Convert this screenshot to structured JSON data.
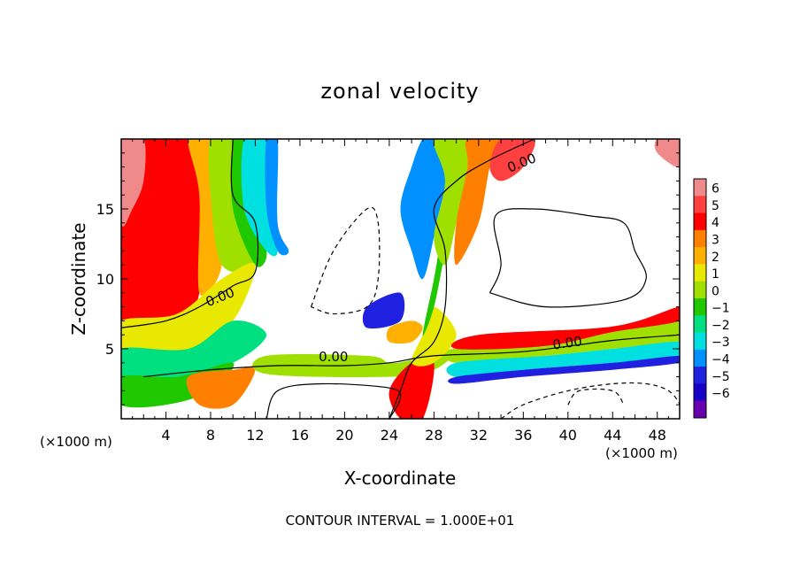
{
  "chart_data": {
    "type": "heatmap",
    "title": "zonal velocity",
    "xlabel": "X-coordinate",
    "ylabel": "Z-coordinate",
    "x_unit_left": "(×1000 m)",
    "x_unit_right": "(×1000 m)",
    "footer": "CONTOUR INTERVAL = 1.000E+01",
    "xlim": [
      0,
      50
    ],
    "ylim": [
      0,
      20
    ],
    "x_ticks": [
      4,
      8,
      12,
      16,
      20,
      24,
      28,
      32,
      36,
      40,
      44,
      48
    ],
    "y_ticks": [
      5,
      10,
      15
    ],
    "colorbar": {
      "labels": [
        "6",
        "5",
        "4",
        "3",
        "2",
        "1",
        "0",
        "−1",
        "−2",
        "−3",
        "−4",
        "−5",
        "−6"
      ],
      "colors": [
        "#f08a8a",
        "#ff4040",
        "#ff0000",
        "#ff8000",
        "#ffb000",
        "#e8e800",
        "#a0e000",
        "#20c800",
        "#00e080",
        "#00e0e0",
        "#0090ff",
        "#2020e0",
        "#1800c8",
        "#6800b0"
      ]
    },
    "contour_labels": [
      "0.00",
      "0.00",
      "0.00",
      "0.00"
    ],
    "contour_label_pos": [
      [
        9,
        8.4
      ],
      [
        19,
        4.1
      ],
      [
        40,
        5.1
      ],
      [
        36,
        18.0
      ]
    ],
    "contour_label_rot": [
      -22,
      0,
      -8,
      -22
    ],
    "regions": [
      {
        "value": 4.0,
        "points": [
          [
            0,
            20
          ],
          [
            6,
            20
          ],
          [
            7,
            16
          ],
          [
            7,
            9
          ],
          [
            5,
            7.5
          ],
          [
            0,
            7
          ]
        ]
      },
      {
        "value": 2.0,
        "points": [
          [
            6,
            20
          ],
          [
            8,
            20
          ],
          [
            8,
            16
          ],
          [
            9,
            11
          ],
          [
            7,
            9
          ],
          [
            7,
            16
          ]
        ]
      },
      {
        "value": 0.0,
        "points": [
          [
            8,
            20
          ],
          [
            10,
            20
          ],
          [
            10,
            15
          ],
          [
            12,
            11
          ],
          [
            9,
            11
          ],
          [
            8,
            16
          ]
        ]
      },
      {
        "value": -1.0,
        "points": [
          [
            10,
            20
          ],
          [
            11,
            20
          ],
          [
            11,
            15
          ],
          [
            13,
            12
          ],
          [
            12,
            11
          ],
          [
            10,
            15
          ]
        ]
      },
      {
        "value": -3.0,
        "points": [
          [
            11,
            20
          ],
          [
            13,
            20
          ],
          [
            13,
            15
          ],
          [
            14,
            12
          ],
          [
            13,
            12
          ],
          [
            11,
            15
          ]
        ]
      },
      {
        "value": -4.5,
        "points": [
          [
            13,
            20
          ],
          [
            14,
            20
          ],
          [
            14,
            14
          ],
          [
            15,
            12
          ],
          [
            14,
            12
          ],
          [
            13,
            15
          ]
        ]
      },
      {
        "value": 5.5,
        "points": [
          [
            0,
            20
          ],
          [
            2,
            20
          ],
          [
            2,
            17
          ],
          [
            1,
            15
          ],
          [
            0,
            14
          ]
        ]
      },
      {
        "value": 0.5,
        "points": [
          [
            0,
            7
          ],
          [
            5,
            7.5
          ],
          [
            9,
            10
          ],
          [
            12,
            11
          ],
          [
            10,
            7
          ],
          [
            6,
            5
          ],
          [
            0,
            5
          ]
        ]
      },
      {
        "value": -2.5,
        "points": [
          [
            0,
            5
          ],
          [
            6,
            5
          ],
          [
            10,
            7
          ],
          [
            13,
            6
          ],
          [
            10,
            4
          ],
          [
            5,
            3
          ],
          [
            0,
            3
          ]
        ]
      },
      {
        "value": -1.0,
        "points": [
          [
            0,
            3
          ],
          [
            5,
            3
          ],
          [
            10,
            4
          ],
          [
            8,
            2
          ],
          [
            4,
            1
          ],
          [
            0,
            1
          ]
        ]
      },
      {
        "value": 3.0,
        "points": [
          [
            6,
            3
          ],
          [
            10,
            3.5
          ],
          [
            12,
            3.5
          ],
          [
            10,
            1
          ],
          [
            7,
            1
          ]
        ]
      },
      {
        "value": 0.0,
        "points": [
          [
            13,
            4.5
          ],
          [
            22,
            4.5
          ],
          [
            24,
            4
          ],
          [
            26,
            4.2
          ],
          [
            30,
            5
          ],
          [
            28,
            3.5
          ],
          [
            24,
            3
          ],
          [
            13,
            3.2
          ]
        ]
      },
      {
        "value": 4.0,
        "points": [
          [
            24,
            2
          ],
          [
            26,
            4
          ],
          [
            28,
            4
          ],
          [
            27,
            0
          ],
          [
            25,
            0
          ]
        ]
      },
      {
        "value": 1.0,
        "points": [
          [
            26,
            4
          ],
          [
            28,
            4
          ],
          [
            30,
            6
          ],
          [
            28,
            8
          ],
          [
            27,
            6
          ]
        ]
      },
      {
        "value": -1.5,
        "points": [
          [
            27,
            6
          ],
          [
            28,
            8
          ],
          [
            29,
            12
          ],
          [
            30,
            16
          ],
          [
            31,
            17
          ],
          [
            29,
            14
          ],
          [
            28,
            10
          ]
        ]
      },
      {
        "value": -4.0,
        "points": [
          [
            25,
            15
          ],
          [
            26,
            18
          ],
          [
            27,
            20
          ],
          [
            28,
            20
          ],
          [
            29,
            17
          ],
          [
            28,
            13
          ],
          [
            27,
            10
          ],
          [
            26,
            12
          ]
        ]
      },
      {
        "value": 0.0,
        "points": [
          [
            28,
            20
          ],
          [
            31,
            20
          ],
          [
            31,
            18
          ],
          [
            30,
            14
          ],
          [
            29,
            11
          ],
          [
            28,
            13
          ],
          [
            29,
            17
          ]
        ]
      },
      {
        "value": 3.0,
        "points": [
          [
            31,
            20
          ],
          [
            34,
            20
          ],
          [
            33,
            18
          ],
          [
            32,
            14
          ],
          [
            30,
            11
          ],
          [
            30,
            14
          ],
          [
            31,
            18
          ]
        ]
      },
      {
        "value": 5.0,
        "points": [
          [
            34,
            20
          ],
          [
            37,
            20
          ],
          [
            36,
            18
          ],
          [
            34,
            17
          ],
          [
            33,
            18
          ]
        ]
      },
      {
        "value": 0.0,
        "points": [
          [
            30,
            5
          ],
          [
            38,
            5.2
          ],
          [
            44,
            6.2
          ],
          [
            50,
            7
          ],
          [
            50,
            5.5
          ],
          [
            44,
            5
          ],
          [
            38,
            4.5
          ],
          [
            30,
            4
          ]
        ]
      },
      {
        "value": 3.5,
        "points": [
          [
            32,
            6
          ],
          [
            44,
            6.6
          ],
          [
            50,
            8
          ],
          [
            50,
            7
          ],
          [
            44,
            6.2
          ],
          [
            38,
            5.2
          ],
          [
            30,
            5
          ]
        ]
      },
      {
        "value": -3.0,
        "points": [
          [
            30,
            4
          ],
          [
            38,
            4.5
          ],
          [
            44,
            5
          ],
          [
            50,
            5.5
          ],
          [
            50,
            4.5
          ],
          [
            44,
            4
          ],
          [
            36,
            3.5
          ],
          [
            30,
            3
          ]
        ]
      },
      {
        "value": -5.5,
        "points": [
          [
            30,
            3
          ],
          [
            36,
            3.5
          ],
          [
            44,
            4
          ],
          [
            50,
            4.5
          ],
          [
            50,
            4
          ],
          [
            44,
            3.5
          ],
          [
            36,
            3
          ],
          [
            30,
            2.5
          ]
        ]
      },
      {
        "value": -5.0,
        "points": [
          [
            22,
            8
          ],
          [
            25,
            9
          ],
          [
            25,
            7
          ],
          [
            22,
            6.5
          ]
        ]
      },
      {
        "value": 2.0,
        "points": [
          [
            24,
            6.5
          ],
          [
            26,
            7
          ],
          [
            27,
            6.5
          ],
          [
            26,
            5.5
          ],
          [
            24,
            5.5
          ]
        ]
      },
      {
        "value": 5.5,
        "points": [
          [
            48,
            20
          ],
          [
            50,
            20
          ],
          [
            50,
            18
          ],
          [
            48,
            19
          ]
        ]
      }
    ],
    "contours": [
      {
        "style": "solid",
        "points": [
          [
            0,
            6.5
          ],
          [
            4,
            7
          ],
          [
            7,
            8
          ],
          [
            10,
            9.5
          ],
          [
            12,
            10.5
          ],
          [
            12,
            14
          ],
          [
            10,
            16
          ],
          [
            10,
            20
          ]
        ]
      },
      {
        "style": "solid",
        "points": [
          [
            2,
            3
          ],
          [
            8,
            3.5
          ],
          [
            14,
            3.8
          ],
          [
            20,
            3.8
          ],
          [
            24,
            4
          ],
          [
            28,
            4.5
          ],
          [
            36,
            4.8
          ],
          [
            44,
            5.6
          ],
          [
            50,
            6
          ]
        ]
      },
      {
        "style": "solid",
        "points": [
          [
            24,
            0
          ],
          [
            25,
            2
          ],
          [
            26,
            4
          ],
          [
            28,
            5.5
          ],
          [
            29,
            8
          ],
          [
            29,
            12
          ],
          [
            28,
            15
          ],
          [
            30,
            17
          ],
          [
            33,
            18.5
          ],
          [
            37,
            20
          ]
        ]
      },
      {
        "style": "solid",
        "points": [
          [
            33,
            9
          ],
          [
            34,
            11
          ],
          [
            33.5,
            14.5
          ],
          [
            37,
            15
          ],
          [
            42,
            14.5
          ],
          [
            45,
            14
          ],
          [
            46,
            12
          ],
          [
            47,
            10
          ],
          [
            45,
            8.5
          ],
          [
            38,
            8
          ],
          [
            33,
            9
          ]
        ]
      },
      {
        "style": "solid",
        "points": [
          [
            13,
            0
          ],
          [
            14,
            2
          ],
          [
            18,
            2.5
          ],
          [
            24,
            2.2
          ],
          [
            25,
            1.5
          ],
          [
            24,
            0
          ]
        ]
      },
      {
        "style": "dashed",
        "points": [
          [
            17,
            8
          ],
          [
            19,
            12
          ],
          [
            22,
            15
          ],
          [
            23,
            14
          ],
          [
            23,
            10
          ],
          [
            22,
            8
          ],
          [
            19,
            7.5
          ],
          [
            17,
            8
          ]
        ]
      },
      {
        "style": "dashed",
        "points": [
          [
            34,
            0
          ],
          [
            36,
            1
          ],
          [
            40,
            2
          ],
          [
            44,
            2.5
          ],
          [
            47,
            2.5
          ],
          [
            49,
            2
          ],
          [
            50,
            1
          ],
          [
            50,
            0
          ]
        ]
      },
      {
        "style": "dashed",
        "points": [
          [
            40,
            1
          ],
          [
            41,
            2
          ],
          [
            44,
            2
          ],
          [
            45,
            1
          ]
        ]
      }
    ]
  }
}
